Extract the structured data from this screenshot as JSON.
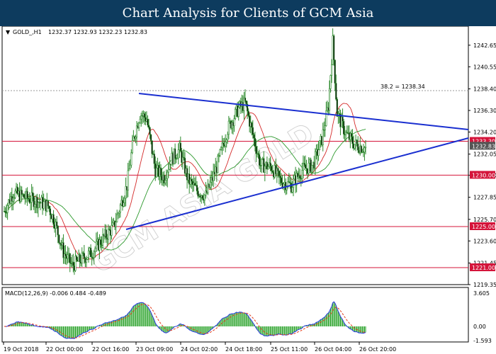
{
  "banner": {
    "title": "Chart Analysis for Clients of GCM Asia"
  },
  "symbol_header": {
    "symbol": "GOLD_,H1",
    "ohlc": "1232.37 1232.93 1232.23 1232.83"
  },
  "macd_header": {
    "label": "MACD(12,26,9) -0.006 0.484 -0.489"
  },
  "watermark": "GCM ASIA GOLD",
  "fib_label": "38.2 = 1238.34",
  "colors": {
    "banner_bg": "#0d3b5e",
    "candle": "#2e8b2e",
    "trendline": "#1a2fd0",
    "level_line": "#d4143a",
    "level_box": "#d4143a",
    "current_box": "#d4143a",
    "macd_hist": "#1f9e1f",
    "macd_line": "#2a3ae0",
    "macd_signal": "#e23a1a",
    "ma_fast": "#d42a2a",
    "ma_slow": "#2e9a2e"
  },
  "chart_data": {
    "type": "candlestick",
    "symbol": "GOLD",
    "timeframe": "H1",
    "y_axis": {
      "min": 1219.35,
      "max": 1244.5,
      "tick_labels": [
        "1242.65",
        "1240.55",
        "1238.40",
        "1236.30",
        "1234.20",
        "1232.05",
        "1230.00",
        "1227.85",
        "1225.70",
        "1223.60",
        "1221.45",
        "1219.35"
      ]
    },
    "x_axis": {
      "tick_labels": [
        "19 Oct 2018",
        "22 Oct 00:00",
        "22 Oct 16:00",
        "23 Oct 09:00",
        "24 Oct 02:00",
        "24 Oct 18:00",
        "25 Oct 11:00",
        "26 Oct 04:00",
        "26 Oct 20:00"
      ]
    },
    "current_price": "1232.83",
    "levels": [
      {
        "value": 1233.3,
        "label": "1233.30"
      },
      {
        "value": 1230.0,
        "label": "1230.00"
      },
      {
        "value": 1225.0,
        "label": "1225.00"
      },
      {
        "value": 1221.0,
        "label": "1221.00"
      }
    ],
    "fib_level": 1238.34,
    "macd_axis": {
      "tick_labels": [
        "3.605",
        "0.00",
        "-1.593"
      ],
      "min": -1.593,
      "max": 3.605
    }
  }
}
